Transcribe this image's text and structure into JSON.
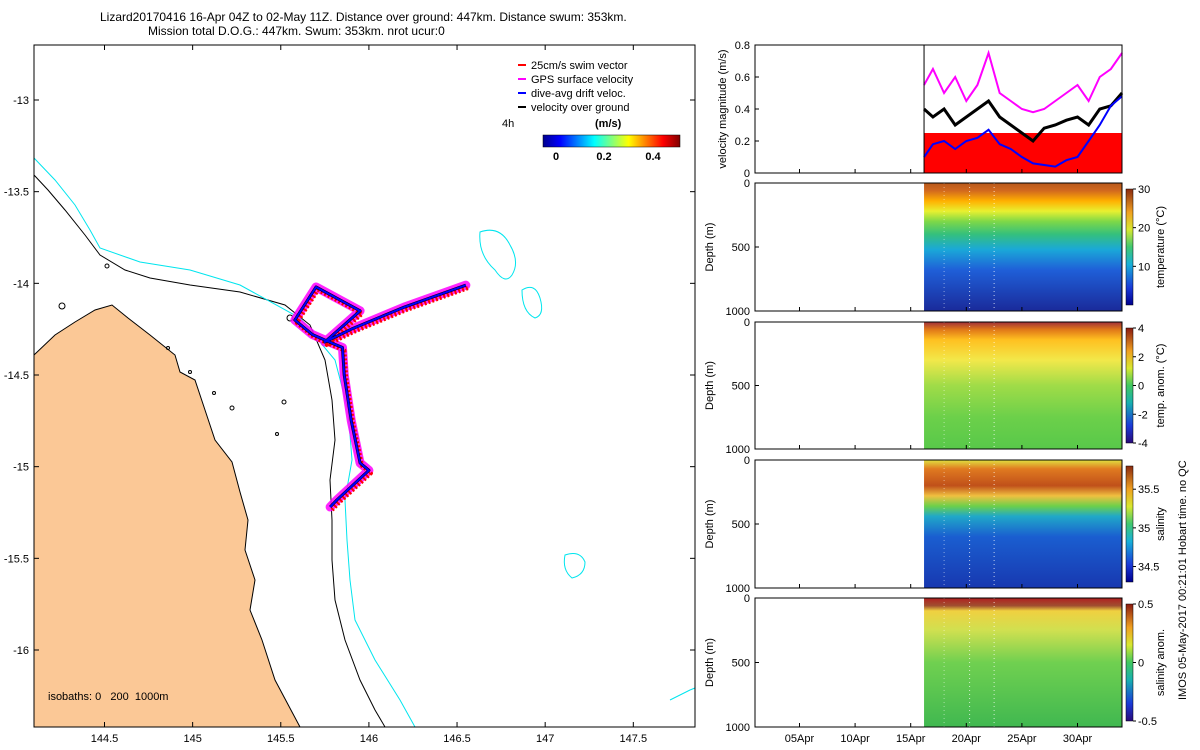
{
  "titles": {
    "line1": "Lizard20170416 16-Apr 04Z to 02-May 11Z. Distance over ground: 447km. Distance swum: 353km.",
    "line2": "Mission total D.O.G.: 447km. Swum: 353km. nrot ucur:0"
  },
  "watermark": "IMOS 05-May-2017 00:21:01 Hobart time. no QC",
  "map": {
    "legend": [
      {
        "label": "25cm/s swim vector",
        "color": "#ff0000"
      },
      {
        "label": "GPS surface velocity",
        "color": "#ff00ff"
      },
      {
        "label": "dive-avg drift veloc.",
        "color": "#0000ff"
      },
      {
        "label": "velocity over ground",
        "color": "#000000"
      }
    ],
    "time_marker": "4h",
    "colorbar_title": "(m/s)",
    "colorbar_ticks": [
      "0",
      "0.2",
      "0.4"
    ],
    "isobaths_label": "isobaths: 0   200  1000m",
    "land_color": "#fbc896",
    "isobath_colors": {
      "200m": "#000000",
      "1000m": "#00e5ee"
    }
  },
  "chart_data": [
    {
      "type": "line",
      "name": "glider-track-map",
      "x_ticks": [
        "144.5",
        "145",
        "145.5",
        "146",
        "146.5",
        "147",
        "147.5"
      ],
      "y_ticks": [
        "-13",
        "-13.5",
        "-14",
        "-14.5",
        "-15",
        "-15.5",
        "-16"
      ],
      "xlim": [
        144.1,
        147.85
      ],
      "ylim": [
        -16.42,
        -12.7
      ],
      "track": [
        {
          "lon": 146.55,
          "lat": -14.01
        },
        {
          "lon": 146.2,
          "lat": -14.13
        },
        {
          "lon": 145.9,
          "lat": -14.25
        },
        {
          "lon": 145.75,
          "lat": -14.32
        },
        {
          "lon": 145.95,
          "lat": -14.15
        },
        {
          "lon": 145.7,
          "lat": -14.02
        },
        {
          "lon": 145.58,
          "lat": -14.2
        },
        {
          "lon": 145.68,
          "lat": -14.28
        },
        {
          "lon": 145.8,
          "lat": -14.33
        },
        {
          "lon": 145.85,
          "lat": -14.35
        },
        {
          "lon": 145.86,
          "lat": -14.5
        },
        {
          "lon": 145.9,
          "lat": -14.75
        },
        {
          "lon": 145.95,
          "lat": -14.98
        },
        {
          "lon": 146.0,
          "lat": -15.02
        },
        {
          "lon": 145.82,
          "lat": -15.18
        },
        {
          "lon": 145.78,
          "lat": -15.22
        }
      ]
    },
    {
      "type": "line",
      "ylabel": "velocity magnitude (m/s)",
      "y_ticks": [
        "0",
        "0.2",
        "0.4",
        "0.6",
        "0.8"
      ],
      "ylim": [
        0,
        0.8
      ],
      "x_ticks": [
        "05Apr",
        "10Apr",
        "15Apr",
        "20Apr",
        "25Apr",
        "30Apr"
      ],
      "x_days": [
        5,
        10,
        15,
        20,
        25,
        30
      ],
      "xlim": [
        1,
        34
      ],
      "swim_speed": 0.25,
      "series": [
        {
          "color": "#ff00ff",
          "x": [
            16.2,
            17,
            18,
            19,
            20,
            21,
            22,
            23,
            24,
            25,
            26,
            27,
            28,
            29,
            30,
            31,
            32,
            33,
            34
          ],
          "values": [
            0.55,
            0.65,
            0.5,
            0.6,
            0.45,
            0.55,
            0.75,
            0.5,
            0.45,
            0.4,
            0.38,
            0.4,
            0.45,
            0.5,
            0.55,
            0.45,
            0.6,
            0.65,
            0.75
          ]
        },
        {
          "color": "#000000",
          "x": [
            16.2,
            17,
            18,
            19,
            20,
            21,
            22,
            23,
            24,
            25,
            26,
            27,
            28,
            29,
            30,
            31,
            32,
            33,
            34
          ],
          "values": [
            0.4,
            0.35,
            0.4,
            0.3,
            0.35,
            0.4,
            0.45,
            0.35,
            0.3,
            0.25,
            0.2,
            0.28,
            0.3,
            0.33,
            0.35,
            0.3,
            0.4,
            0.42,
            0.5
          ]
        },
        {
          "color": "#0000ff",
          "x": [
            16.2,
            17,
            18,
            19,
            20,
            21,
            22,
            23,
            24,
            25,
            26,
            27,
            28,
            29,
            30,
            31,
            32,
            33,
            34
          ],
          "values": [
            0.1,
            0.18,
            0.2,
            0.15,
            0.2,
            0.22,
            0.27,
            0.18,
            0.15,
            0.1,
            0.06,
            0.05,
            0.04,
            0.08,
            0.1,
            0.2,
            0.3,
            0.42,
            0.48
          ]
        }
      ]
    },
    {
      "type": "heatmap",
      "ylabel": "Depth (m)",
      "cblabel": "temperature (°C)",
      "y_ticks": [
        "0",
        "500",
        "1000"
      ],
      "ylim": [
        1000,
        0
      ],
      "cb_ticks": [
        "30",
        "20",
        "10"
      ],
      "cb_range": [
        0,
        30
      ],
      "data_start_day": 16.2
    },
    {
      "type": "heatmap",
      "ylabel": "Depth (m)",
      "cblabel": "temp. anom. (°C)",
      "y_ticks": [
        "0",
        "500",
        "1000"
      ],
      "ylim": [
        1000,
        0
      ],
      "cb_ticks": [
        "4",
        "2",
        "0",
        "-2",
        "-4"
      ],
      "cb_range": [
        -4,
        4
      ],
      "data_start_day": 16.2
    },
    {
      "type": "heatmap",
      "ylabel": "Depth (m)",
      "cblabel": "salinity",
      "y_ticks": [
        "0",
        "500",
        "1000"
      ],
      "ylim": [
        1000,
        0
      ],
      "cb_ticks": [
        "35.5",
        "35",
        "34.5"
      ],
      "cb_range": [
        34.3,
        35.8
      ],
      "data_start_day": 16.2
    },
    {
      "type": "heatmap",
      "ylabel": "Depth (m)",
      "cblabel": "salinity anom.",
      "y_ticks": [
        "0",
        "500",
        "1000"
      ],
      "ylim": [
        1000,
        0
      ],
      "cb_ticks": [
        "0.5",
        "0",
        "-0.5"
      ],
      "cb_range": [
        -0.5,
        0.5
      ],
      "data_start_day": 16.2
    }
  ]
}
